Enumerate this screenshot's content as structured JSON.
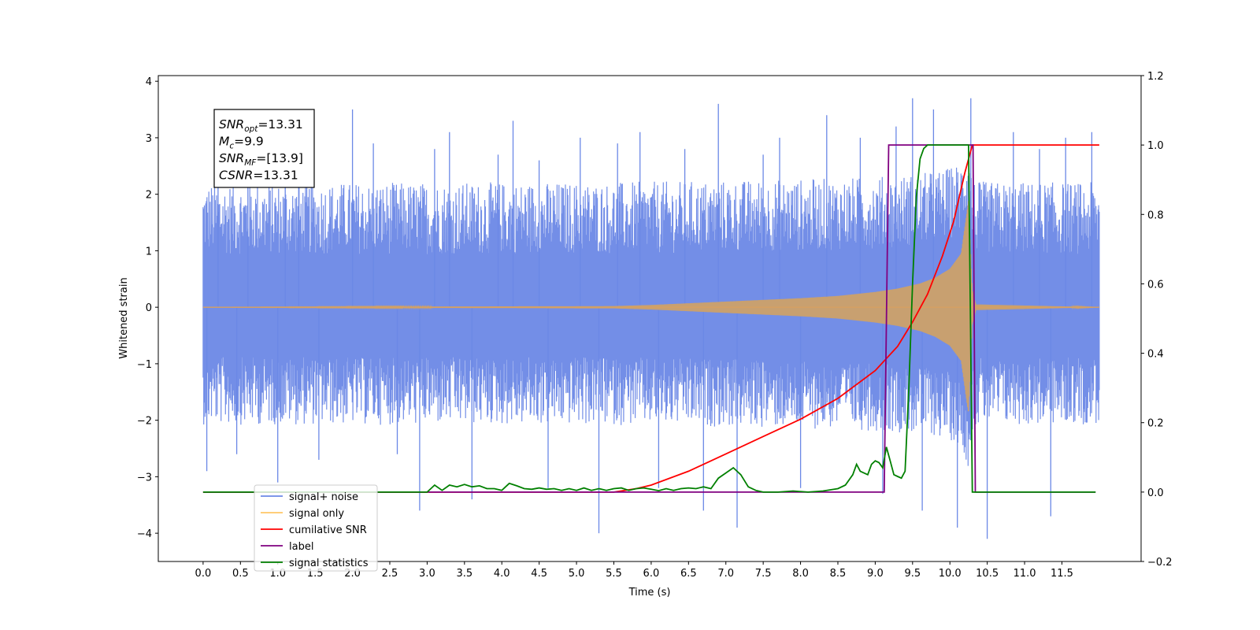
{
  "chart_data": {
    "type": "line",
    "title": "",
    "xlabel": "Time (s)",
    "ylabel": "Whitened strain",
    "y2label": "",
    "xlim": [
      -0.6,
      12.56
    ],
    "ylim": [
      -4.5,
      4.1
    ],
    "y2lim": [
      -0.2,
      1.2
    ],
    "x_ticks": [
      0.0,
      0.5,
      1.0,
      1.5,
      2.0,
      2.5,
      3.0,
      3.5,
      4.0,
      4.5,
      5.0,
      5.5,
      6.0,
      6.5,
      7.0,
      7.5,
      8.0,
      8.5,
      9.0,
      9.5,
      10.0,
      10.5,
      11.0,
      11.5
    ],
    "x_tick_labels": [
      "0.0",
      "0.5",
      "1.0",
      "1.5",
      "2.0",
      "2.5",
      "3.0",
      "3.5",
      "4.0",
      "4.5",
      "5.0",
      "5.5",
      "6.0",
      "6.5",
      "7.0",
      "7.5",
      "8.0",
      "8.5",
      "9.0",
      "9.5",
      "10.0",
      "10.5",
      "11.0",
      "11.5"
    ],
    "y_ticks": [
      -4,
      -3,
      -2,
      -1,
      0,
      1,
      2,
      3,
      4
    ],
    "y_tick_labels": [
      "−4",
      "−3",
      "−2",
      "−1",
      "0",
      "1",
      "2",
      "3",
      "4"
    ],
    "y2_ticks": [
      -0.2,
      0.0,
      0.2,
      0.4,
      0.6,
      0.8,
      1.0,
      1.2
    ],
    "y2_tick_labels": [
      "−0.2",
      "0.0",
      "0.2",
      "0.4",
      "0.6",
      "0.8",
      "1.0",
      "1.2"
    ],
    "grid": false,
    "legend_position": "lower-left",
    "legend": [
      {
        "label": "signal+ noise",
        "color": "#6b88e6"
      },
      {
        "label": "signal only",
        "color": "#ffc766"
      },
      {
        "label": "cumilative SNR",
        "color": "#ff0000"
      },
      {
        "label": "label",
        "color": "#800080"
      },
      {
        "label": "signal statistics",
        "color": "#008000"
      }
    ],
    "annotation_lines": [
      {
        "sym": "SNR",
        "sub": "opt",
        "val": "=13.31"
      },
      {
        "sym": "M",
        "sub": "c",
        "val": "=9.9"
      },
      {
        "sym": "SNR",
        "sub": "MF",
        "val": "=[13.9]"
      },
      {
        "sym": "CSNR",
        "sub": "",
        "val": "=13.31"
      }
    ],
    "series": [
      {
        "name": "signal+ noise",
        "axis": "left",
        "color": "#6b88e6",
        "x_range": [
          0.0,
          12.0
        ],
        "band_min": -1.6,
        "band_max": 1.7,
        "spike_x": [
          0.05,
          0.2,
          0.45,
          0.6,
          1.0,
          1.1,
          1.28,
          1.55,
          2.0,
          2.28,
          2.6,
          2.9,
          3.1,
          3.3,
          3.6,
          3.95,
          4.15,
          4.5,
          4.62,
          5.05,
          5.3,
          5.55,
          5.85,
          6.1,
          6.45,
          6.7,
          6.9,
          7.15,
          7.5,
          7.72,
          8.0,
          8.35,
          8.8,
          9.1,
          9.28,
          9.5,
          9.63,
          9.78,
          10.1,
          10.28,
          10.5,
          10.85,
          11.2,
          11.35,
          11.55,
          11.9
        ],
        "spike_y": [
          -2.9,
          2.9,
          -2.6,
          3.0,
          -3.1,
          2.5,
          3.2,
          -2.7,
          3.5,
          2.9,
          -2.6,
          -3.6,
          2.8,
          3.1,
          -3.4,
          2.7,
          3.3,
          2.6,
          -3.2,
          3.0,
          -4.0,
          2.9,
          3.1,
          -3.2,
          2.8,
          -3.6,
          3.6,
          -3.9,
          2.7,
          3.0,
          -3.2,
          3.4,
          3.0,
          -3.3,
          3.2,
          3.7,
          -3.6,
          3.5,
          -3.9,
          3.7,
          -4.1,
          3.1,
          2.8,
          -3.7,
          3.0,
          3.1
        ]
      },
      {
        "name": "signal only",
        "axis": "left",
        "color": "#f0a030",
        "envelope_x": [
          0.0,
          5.5,
          6.0,
          6.5,
          7.0,
          7.5,
          8.0,
          8.5,
          9.0,
          9.3,
          9.6,
          9.8,
          10.0,
          10.15,
          10.25,
          10.3,
          10.35,
          12.0
        ],
        "envelope_y": [
          0.0,
          0.02,
          0.04,
          0.07,
          0.1,
          0.13,
          0.16,
          0.2,
          0.27,
          0.33,
          0.42,
          0.52,
          0.68,
          0.95,
          1.9,
          0.3,
          0.05,
          0.0
        ]
      },
      {
        "name": "cumilative SNR",
        "axis": "right",
        "color": "#ff0000",
        "x": [
          0.0,
          5.5,
          5.8,
          6.0,
          6.5,
          7.0,
          7.5,
          8.0,
          8.5,
          9.0,
          9.3,
          9.5,
          9.7,
          9.9,
          10.05,
          10.2,
          10.3,
          12.0
        ],
        "y": [
          0.0,
          0.0,
          0.01,
          0.02,
          0.06,
          0.11,
          0.16,
          0.21,
          0.27,
          0.35,
          0.42,
          0.49,
          0.57,
          0.68,
          0.78,
          0.92,
          1.0,
          1.0
        ]
      },
      {
        "name": "label",
        "axis": "right",
        "color": "#800080",
        "x": [
          0.0,
          9.12,
          9.18,
          10.31,
          10.34,
          11.95
        ],
        "y": [
          0.0,
          0.0,
          1.0,
          1.0,
          0.0,
          0.0
        ]
      },
      {
        "name": "signal statistics",
        "axis": "right",
        "color": "#008000",
        "x": [
          0.0,
          3.0,
          3.1,
          3.2,
          3.3,
          3.4,
          3.5,
          3.6,
          3.7,
          3.8,
          3.9,
          4.0,
          4.1,
          4.2,
          4.3,
          4.4,
          4.5,
          4.6,
          4.7,
          4.8,
          4.9,
          5.0,
          5.1,
          5.2,
          5.3,
          5.4,
          5.5,
          5.6,
          5.7,
          5.8,
          5.9,
          6.0,
          6.1,
          6.2,
          6.3,
          6.4,
          6.5,
          6.6,
          6.7,
          6.8,
          6.9,
          7.0,
          7.1,
          7.2,
          7.3,
          7.4,
          7.5,
          7.7,
          7.9,
          8.1,
          8.3,
          8.5,
          8.6,
          8.7,
          8.75,
          8.8,
          8.9,
          8.95,
          9.0,
          9.05,
          9.1,
          9.15,
          9.2,
          9.25,
          9.3,
          9.35,
          9.4,
          9.45,
          9.5,
          9.55,
          9.6,
          9.65,
          9.7,
          9.8,
          9.9,
          10.0,
          10.1,
          10.2,
          10.25,
          10.3,
          10.35,
          10.5,
          11.0,
          11.5,
          11.95
        ],
        "y": [
          0.0,
          0.0,
          0.02,
          0.005,
          0.02,
          0.015,
          0.022,
          0.015,
          0.018,
          0.01,
          0.01,
          0.005,
          0.025,
          0.018,
          0.01,
          0.008,
          0.012,
          0.008,
          0.01,
          0.005,
          0.01,
          0.005,
          0.012,
          0.005,
          0.01,
          0.005,
          0.01,
          0.012,
          0.005,
          0.01,
          0.012,
          0.008,
          0.004,
          0.01,
          0.005,
          0.01,
          0.012,
          0.01,
          0.015,
          0.01,
          0.04,
          0.055,
          0.07,
          0.05,
          0.015,
          0.005,
          0.0,
          0.0,
          0.003,
          0.0,
          0.003,
          0.01,
          0.02,
          0.05,
          0.08,
          0.06,
          0.05,
          0.08,
          0.09,
          0.085,
          0.07,
          0.13,
          0.09,
          0.05,
          0.045,
          0.04,
          0.06,
          0.3,
          0.6,
          0.85,
          0.96,
          0.99,
          1.0,
          1.0,
          1.0,
          1.0,
          1.0,
          1.0,
          1.0,
          0.0,
          0.0,
          0.0,
          0.0,
          0.0,
          0.0
        ]
      }
    ]
  }
}
